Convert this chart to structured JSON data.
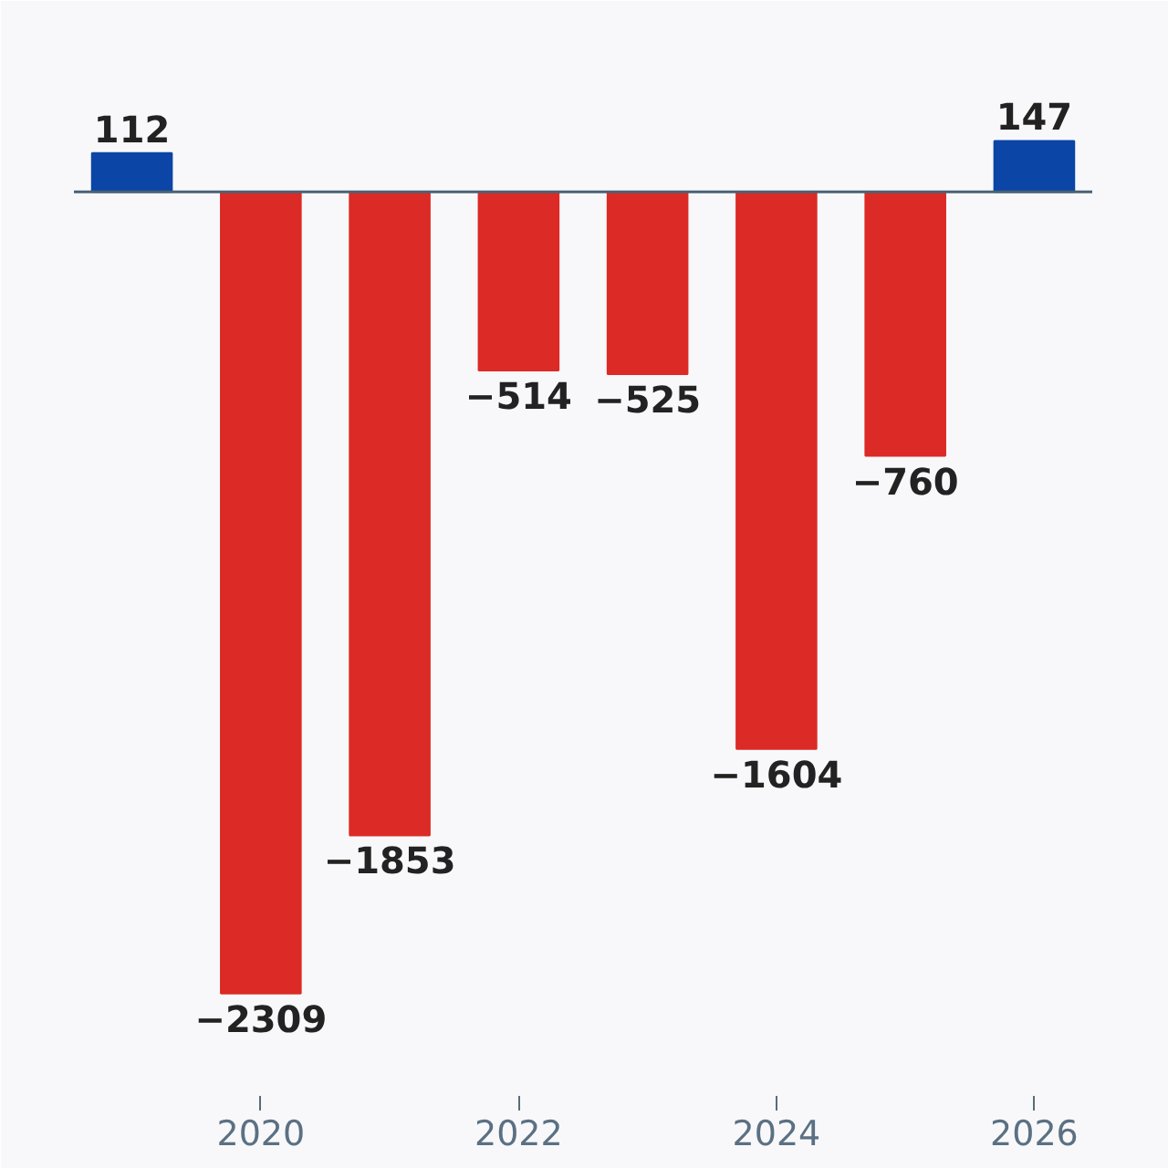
{
  "chart_data": {
    "type": "bar",
    "x": [
      2019,
      2020,
      2021,
      2022,
      2023,
      2024,
      2025,
      2026
    ],
    "values": [
      112,
      -2309,
      -1853,
      -514,
      -525,
      -1604,
      -760,
      147
    ],
    "colors": [
      "#0b45a6",
      "#dc2a26",
      "#dc2a26",
      "#dc2a26",
      "#dc2a26",
      "#dc2a26",
      "#dc2a26",
      "#0b45a6"
    ],
    "xlim": [
      2018.55,
      2026.45
    ],
    "xticks": [
      2020,
      2022,
      2024,
      2026
    ],
    "tick_labels": "x",
    "data_labels": true,
    "ref_lines": [
      {
        "axis": "y",
        "value": 0,
        "color": "#4a6274"
      }
    ]
  }
}
